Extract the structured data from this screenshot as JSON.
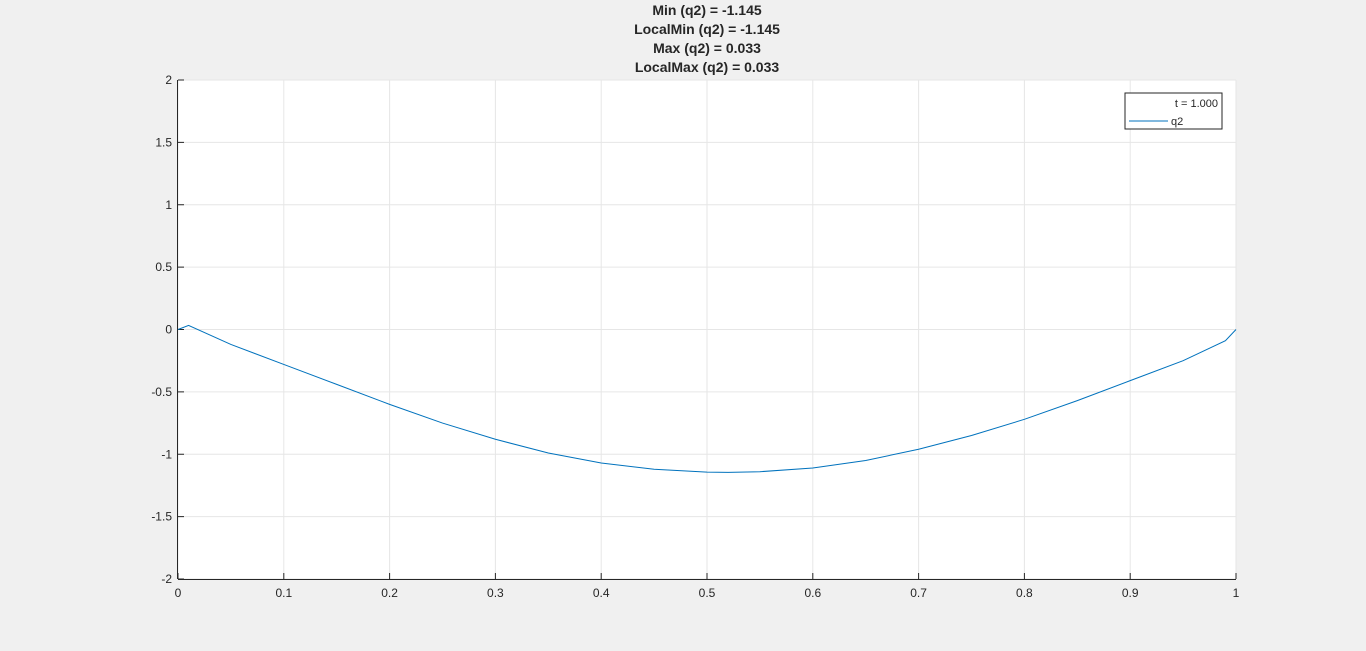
{
  "chart_data": {
    "type": "line",
    "title_lines": [
      "Min (q2) = -1.145",
      "LocalMin (q2) = -1.145",
      "Max (q2) = 0.033",
      "LocalMax (q2) = 0.033"
    ],
    "xlabel": "",
    "ylabel": "",
    "xlim": [
      0,
      1
    ],
    "ylim": [
      -2,
      2
    ],
    "xticks": [
      "0",
      "0.1",
      "0.2",
      "0.3",
      "0.4",
      "0.5",
      "0.6",
      "0.7",
      "0.8",
      "0.9",
      "1"
    ],
    "yticks": [
      "-2",
      "-1.5",
      "-1",
      "-0.5",
      "0",
      "0.5",
      "1",
      "1.5",
      "2"
    ],
    "grid": true,
    "legend": {
      "placement": "top-right",
      "header": "t = 1.000",
      "entries": [
        "q2"
      ]
    },
    "series": [
      {
        "name": "q2",
        "color": "#0072bd",
        "x": [
          0,
          0.01,
          0.05,
          0.1,
          0.15,
          0.2,
          0.25,
          0.3,
          0.35,
          0.4,
          0.45,
          0.5,
          0.52,
          0.55,
          0.6,
          0.65,
          0.7,
          0.75,
          0.8,
          0.85,
          0.9,
          0.95,
          0.99,
          1.0
        ],
        "y": [
          0.0,
          0.033,
          -0.12,
          -0.28,
          -0.44,
          -0.6,
          -0.75,
          -0.88,
          -0.99,
          -1.07,
          -1.12,
          -1.143,
          -1.145,
          -1.14,
          -1.11,
          -1.05,
          -0.96,
          -0.85,
          -0.72,
          -0.57,
          -0.41,
          -0.25,
          -0.09,
          0.0
        ]
      }
    ]
  }
}
